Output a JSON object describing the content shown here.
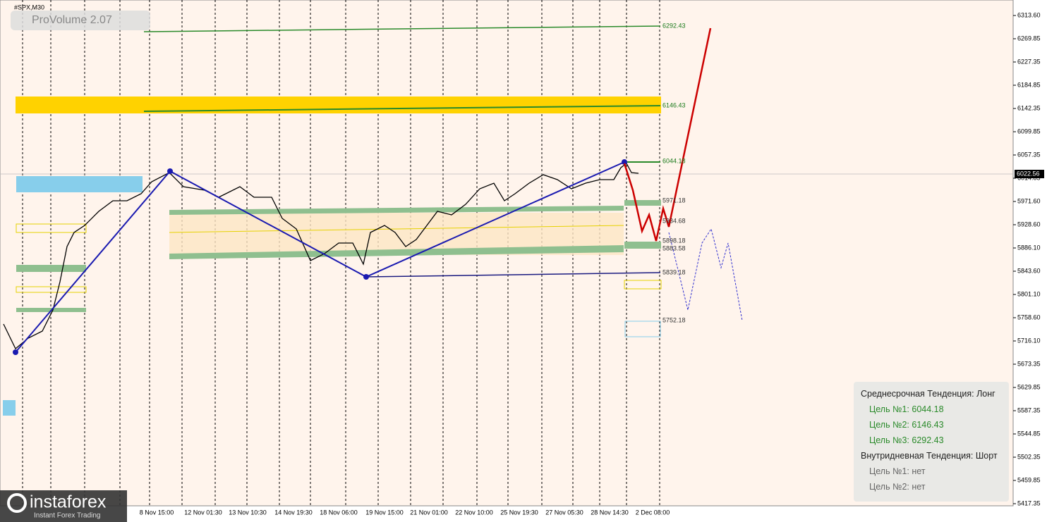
{
  "header": {
    "symbol": "#SPX,M30",
    "indicator": "ProVolume 2.07"
  },
  "price_axis": {
    "ticks": [
      "6313.60",
      "6269.85",
      "6227.35",
      "6184.85",
      "6142.35",
      "6099.85",
      "6057.35",
      "6014.85",
      "5971.60",
      "5928.60",
      "5886.10",
      "5843.60",
      "5801.10",
      "5758.60",
      "5716.10",
      "5673.35",
      "5629.85",
      "5587.35",
      "5544.85",
      "5502.35",
      "5459.85",
      "5417.35"
    ],
    "current_price": "6022.56"
  },
  "time_axis": {
    "labels": [
      "8 Nov 15:00",
      "12 Nov 01:30",
      "13 Nov 10:30",
      "14 Nov 19:30",
      "18 Nov 06:00",
      "19 Nov 15:00",
      "21 Nov 01:00",
      "22 Nov 10:00",
      "25 Nov 19:30",
      "27 Nov 05:30",
      "28 Nov 14:30",
      "2 Dec 08:00"
    ]
  },
  "levels": [
    "6292.43",
    "6146.43",
    "6044.18",
    "5971.18",
    "5934.68",
    "5898.18",
    "5883.58",
    "5839.18",
    "5752.18"
  ],
  "panel": {
    "lines": [
      "Среднесрочная Тенденция: Лонг",
      "Цель №1: 6044.18",
      "Цель №2: 6146.43",
      "Цель №3: 6292.43",
      "Внутридневная Тенденция: Шорт",
      "Цель №1: нет",
      "Цель №2: нет"
    ]
  },
  "logo": {
    "name": "instaforex",
    "tagline": "Instant Forex Trading"
  }
}
